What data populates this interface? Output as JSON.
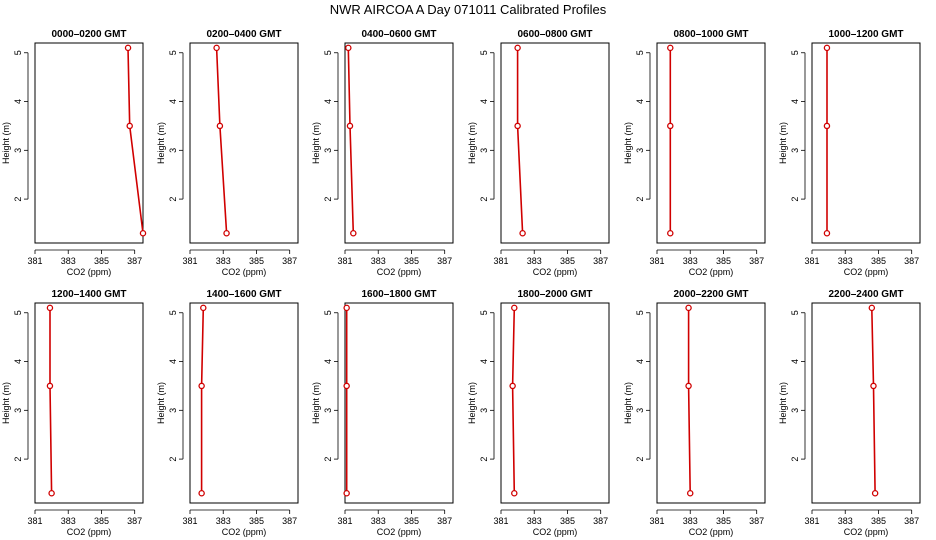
{
  "figure": {
    "title": "NWR AIRCOA A  Day 071011  Calibrated Profiles"
  },
  "chart_data": [
    {
      "type": "line",
      "title": "0000–0200 GMT",
      "xlabel": "CO2 (ppm)",
      "ylabel": "Height (m)",
      "xlim": [
        381,
        387.5
      ],
      "ylim": [
        1.1,
        5.2
      ],
      "xticks": [
        381,
        383,
        385,
        387
      ],
      "yticks": [
        2,
        3,
        4,
        5
      ],
      "grid": false,
      "series": [
        {
          "x": [
            386.6,
            386.7,
            387.5
          ],
          "y": [
            5.1,
            3.5,
            1.3
          ]
        }
      ]
    },
    {
      "type": "line",
      "title": "0200–0400 GMT",
      "xlabel": "CO2 (ppm)",
      "ylabel": "Height (m)",
      "xlim": [
        381,
        387.5
      ],
      "ylim": [
        1.1,
        5.2
      ],
      "xticks": [
        381,
        383,
        385,
        387
      ],
      "yticks": [
        2,
        3,
        4,
        5
      ],
      "grid": false,
      "series": [
        {
          "x": [
            382.6,
            382.8,
            383.2
          ],
          "y": [
            5.1,
            3.5,
            1.3
          ]
        }
      ]
    },
    {
      "type": "line",
      "title": "0400–0600 GMT",
      "xlabel": "CO2 (ppm)",
      "ylabel": "Height (m)",
      "xlim": [
        381,
        387.5
      ],
      "ylim": [
        1.1,
        5.2
      ],
      "xticks": [
        381,
        383,
        385,
        387
      ],
      "yticks": [
        2,
        3,
        4,
        5
      ],
      "grid": false,
      "series": [
        {
          "x": [
            381.2,
            381.3,
            381.5
          ],
          "y": [
            5.1,
            3.5,
            1.3
          ]
        }
      ]
    },
    {
      "type": "line",
      "title": "0600–0800 GMT",
      "xlabel": "CO2 (ppm)",
      "ylabel": "Height (m)",
      "xlim": [
        381,
        387.5
      ],
      "ylim": [
        1.1,
        5.2
      ],
      "xticks": [
        381,
        383,
        385,
        387
      ],
      "yticks": [
        2,
        3,
        4,
        5
      ],
      "grid": false,
      "series": [
        {
          "x": [
            382.0,
            382.0,
            382.3
          ],
          "y": [
            5.1,
            3.5,
            1.3
          ]
        }
      ]
    },
    {
      "type": "line",
      "title": "0800–1000 GMT",
      "xlabel": "CO2 (ppm)",
      "ylabel": "Height (m)",
      "xlim": [
        381,
        387.5
      ],
      "ylim": [
        1.1,
        5.2
      ],
      "xticks": [
        381,
        383,
        385,
        387
      ],
      "yticks": [
        2,
        3,
        4,
        5
      ],
      "grid": false,
      "series": [
        {
          "x": [
            381.8,
            381.8,
            381.8
          ],
          "y": [
            5.1,
            3.5,
            1.3
          ]
        }
      ]
    },
    {
      "type": "line",
      "title": "1000–1200 GMT",
      "xlabel": "CO2 (ppm)",
      "ylabel": "Height (m)",
      "xlim": [
        381,
        387.5
      ],
      "ylim": [
        1.1,
        5.2
      ],
      "xticks": [
        381,
        383,
        385,
        387
      ],
      "yticks": [
        2,
        3,
        4,
        5
      ],
      "grid": false,
      "series": [
        {
          "x": [
            381.9,
            381.9,
            381.9
          ],
          "y": [
            5.1,
            3.5,
            1.3
          ]
        }
      ]
    },
    {
      "type": "line",
      "title": "1200–1400 GMT",
      "xlabel": "CO2 (ppm)",
      "ylabel": "Height (m)",
      "xlim": [
        381,
        387.5
      ],
      "ylim": [
        1.1,
        5.2
      ],
      "xticks": [
        381,
        383,
        385,
        387
      ],
      "yticks": [
        2,
        3,
        4,
        5
      ],
      "grid": false,
      "series": [
        {
          "x": [
            381.9,
            381.9,
            382.0
          ],
          "y": [
            5.1,
            3.5,
            1.3
          ]
        }
      ]
    },
    {
      "type": "line",
      "title": "1400–1600 GMT",
      "xlabel": "CO2 (ppm)",
      "ylabel": "Height (m)",
      "xlim": [
        381,
        387.5
      ],
      "ylim": [
        1.1,
        5.2
      ],
      "xticks": [
        381,
        383,
        385,
        387
      ],
      "yticks": [
        2,
        3,
        4,
        5
      ],
      "grid": false,
      "series": [
        {
          "x": [
            381.8,
            381.7,
            381.7
          ],
          "y": [
            5.1,
            3.5,
            1.3
          ]
        }
      ]
    },
    {
      "type": "line",
      "title": "1600–1800 GMT",
      "xlabel": "CO2 (ppm)",
      "ylabel": "Height (m)",
      "xlim": [
        381,
        387.5
      ],
      "ylim": [
        1.1,
        5.2
      ],
      "xticks": [
        381,
        383,
        385,
        387
      ],
      "yticks": [
        2,
        3,
        4,
        5
      ],
      "grid": false,
      "series": [
        {
          "x": [
            381.1,
            381.1,
            381.1
          ],
          "y": [
            5.1,
            3.5,
            1.3
          ]
        }
      ]
    },
    {
      "type": "line",
      "title": "1800–2000 GMT",
      "xlabel": "CO2 (ppm)",
      "ylabel": "Height (m)",
      "xlim": [
        381,
        387.5
      ],
      "ylim": [
        1.1,
        5.2
      ],
      "xticks": [
        381,
        383,
        385,
        387
      ],
      "yticks": [
        2,
        3,
        4,
        5
      ],
      "grid": false,
      "series": [
        {
          "x": [
            381.8,
            381.7,
            381.8
          ],
          "y": [
            5.1,
            3.5,
            1.3
          ]
        }
      ]
    },
    {
      "type": "line",
      "title": "2000–2200 GMT",
      "xlabel": "CO2 (ppm)",
      "ylabel": "Height (m)",
      "xlim": [
        381,
        387.5
      ],
      "ylim": [
        1.1,
        5.2
      ],
      "xticks": [
        381,
        383,
        385,
        387
      ],
      "yticks": [
        2,
        3,
        4,
        5
      ],
      "grid": false,
      "series": [
        {
          "x": [
            382.9,
            382.9,
            383.0
          ],
          "y": [
            5.1,
            3.5,
            1.3
          ]
        }
      ]
    },
    {
      "type": "line",
      "title": "2200–2400 GMT",
      "xlabel": "CO2 (ppm)",
      "ylabel": "Height (m)",
      "xlim": [
        381,
        387.5
      ],
      "ylim": [
        1.1,
        5.2
      ],
      "xticks": [
        381,
        383,
        385,
        387
      ],
      "yticks": [
        2,
        3,
        4,
        5
      ],
      "grid": false,
      "series": [
        {
          "x": [
            384.6,
            384.7,
            384.8
          ],
          "y": [
            5.1,
            3.5,
            1.3
          ]
        }
      ]
    }
  ],
  "colors": {
    "series": "#d00000",
    "axis": "#000000"
  }
}
